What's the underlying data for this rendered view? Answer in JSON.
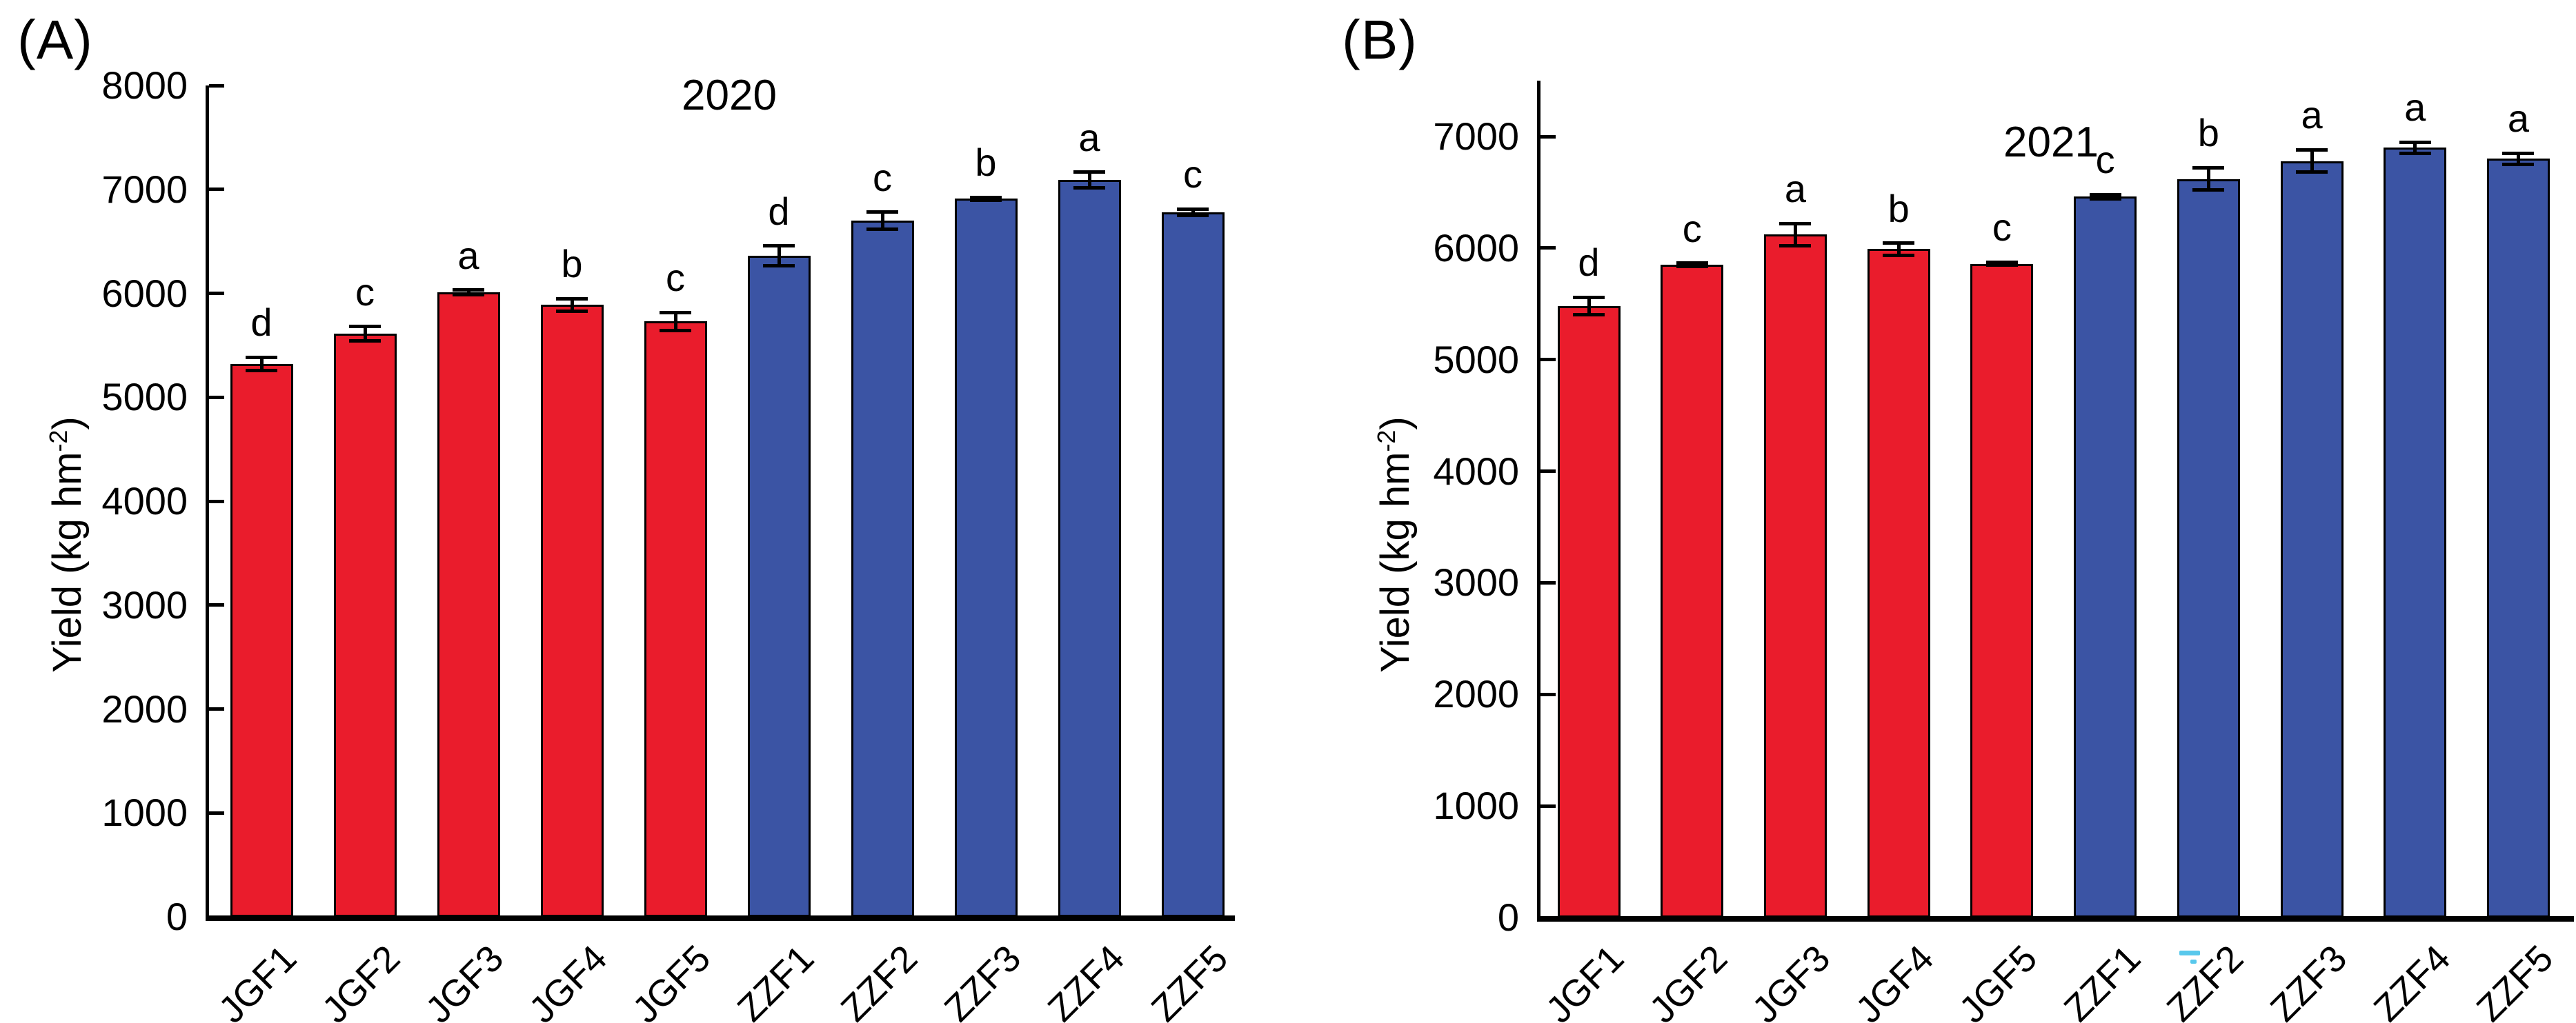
{
  "figure": {
    "background": "#ffffff",
    "axis_color": "#000000",
    "text_color": "#000000",
    "stray_mark_color": "#58c8ec"
  },
  "chart_data": [
    {
      "type": "bar",
      "panel_tag": "(A)",
      "title": "2020",
      "ylabel_text": "Yield (kg hm",
      "ylabel_sup": "-2",
      "ylabel_close": ")",
      "xlabel": "",
      "grid": false,
      "legend": "none",
      "categories": [
        "JGF1",
        "JGF2",
        "JGF3",
        "JGF4",
        "JGF5",
        "ZZF1",
        "ZZF2",
        "ZZF3",
        "ZZF4",
        "ZZF5"
      ],
      "values": [
        5320,
        5610,
        6010,
        5890,
        5730,
        6360,
        6700,
        6910,
        7090,
        6780
      ],
      "errors": [
        65,
        70,
        20,
        60,
        85,
        95,
        80,
        15,
        75,
        30
      ],
      "sig_letters": [
        "d",
        "c",
        "a",
        "b",
        "c",
        "d",
        "c",
        "b",
        "a",
        "c"
      ],
      "bar_colors": [
        "#ea1c2c",
        "#ea1c2c",
        "#ea1c2c",
        "#ea1c2c",
        "#ea1c2c",
        "#3b54a4",
        "#3b54a4",
        "#3b54a4",
        "#3b54a4",
        "#3b54a4"
      ],
      "ylim": [
        0,
        8000
      ],
      "yticks": [
        0,
        1000,
        2000,
        3000,
        4000,
        5000,
        6000,
        7000,
        8000
      ]
    },
    {
      "type": "bar",
      "panel_tag": "(B)",
      "title": "2021",
      "ylabel_text": "Yield (kg hm",
      "ylabel_sup": "-2",
      "ylabel_close": ")",
      "xlabel": "",
      "grid": false,
      "legend": "none",
      "categories": [
        "JGF1",
        "JGF2",
        "JGF3",
        "JGF4",
        "JGF5",
        "ZZF1",
        "ZZF2",
        "ZZF3",
        "ZZF4",
        "ZZF5"
      ],
      "values": [
        5480,
        5850,
        6120,
        5990,
        5860,
        6460,
        6620,
        6780,
        6900,
        6800
      ],
      "errors": [
        80,
        15,
        100,
        55,
        15,
        20,
        100,
        100,
        50,
        50
      ],
      "sig_letters": [
        "d",
        "c",
        "a",
        "b",
        "c",
        "c",
        "b",
        "a",
        "a",
        "a"
      ],
      "bar_colors": [
        "#ea1c2c",
        "#ea1c2c",
        "#ea1c2c",
        "#ea1c2c",
        "#ea1c2c",
        "#3b54a4",
        "#3b54a4",
        "#3b54a4",
        "#3b54a4",
        "#3b54a4"
      ],
      "ylim": [
        0,
        7500
      ],
      "yticks": [
        0,
        1000,
        2000,
        3000,
        4000,
        5000,
        6000,
        7000
      ]
    }
  ]
}
